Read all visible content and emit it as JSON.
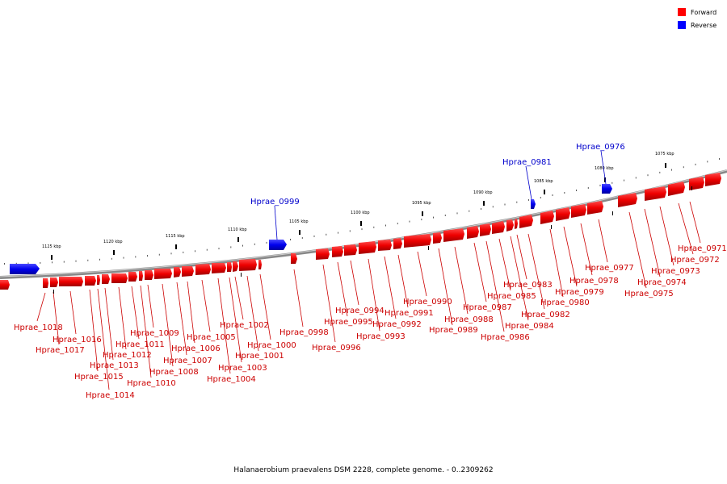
{
  "caption": "Halanaerobium praevalens DSM 2228, complete genome. - 0..2309262",
  "legend": {
    "items": [
      {
        "label": "Forward",
        "color": "#ff0000"
      },
      {
        "label": "Reverse",
        "color": "#0000ff"
      }
    ]
  },
  "colors": {
    "forward": "#ff0000",
    "reverse": "#0000ff",
    "backbone": "#888888"
  },
  "ticks": [
    {
      "kbp": 1075,
      "label": "1075 kbp"
    },
    {
      "kbp": 1080,
      "label": "1080 kbp"
    },
    {
      "kbp": 1085,
      "label": "1085 kbp"
    },
    {
      "kbp": 1090,
      "label": "1090 kbp"
    },
    {
      "kbp": 1095,
      "label": "1095 kbp"
    },
    {
      "kbp": 1100,
      "label": "1100 kbp"
    },
    {
      "kbp": 1105,
      "label": "1105 kbp"
    },
    {
      "kbp": 1110,
      "label": "1110 kbp"
    },
    {
      "kbp": 1115,
      "label": "1115 kbp"
    },
    {
      "kbp": 1120,
      "label": "1120 kbp"
    },
    {
      "kbp": 1125,
      "label": "1125 kbp"
    }
  ],
  "reverse_genes": [
    "Hprae_0976",
    "Hprae_0981",
    "Hprae_0999"
  ],
  "forward_genes": [
    "Hprae_0971",
    "Hprae_0972",
    "Hprae_0973",
    "Hprae_0974",
    "Hprae_0975",
    "Hprae_0977",
    "Hprae_0978",
    "Hprae_0979",
    "Hprae_0980",
    "Hprae_0982",
    "Hprae_0983",
    "Hprae_0984",
    "Hprae_0985",
    "Hprae_0986",
    "Hprae_0987",
    "Hprae_0988",
    "Hprae_0989",
    "Hprae_0990",
    "Hprae_0991",
    "Hprae_0992",
    "Hprae_0993",
    "Hprae_0994",
    "Hprae_0995",
    "Hprae_0996",
    "Hprae_0998",
    "Hprae_1000",
    "Hprae_1001",
    "Hprae_1002",
    "Hprae_1003",
    "Hprae_1004",
    "Hprae_1005",
    "Hprae_1006",
    "Hprae_1007",
    "Hprae_1008",
    "Hprae_1009",
    "Hprae_1010",
    "Hprae_1011",
    "Hprae_1012",
    "Hprae_1013",
    "Hprae_1014",
    "Hprae_1015",
    "Hprae_1016",
    "Hprae_1017",
    "Hprae_1018"
  ]
}
